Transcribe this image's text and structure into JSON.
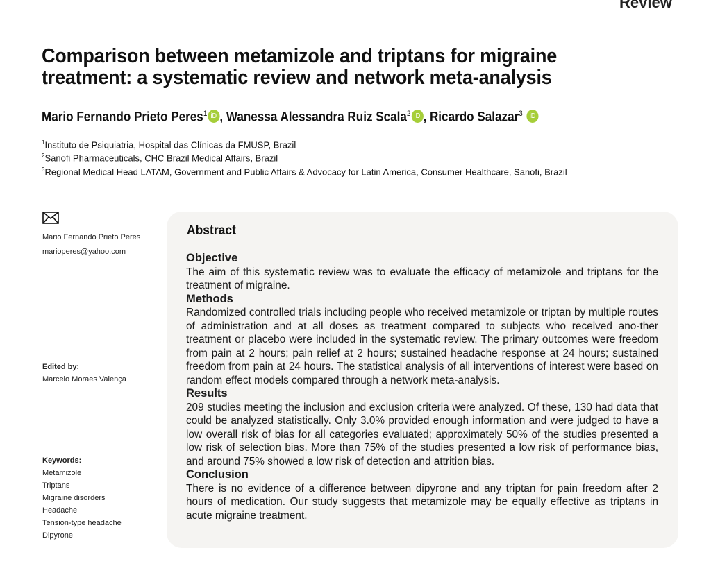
{
  "section_label": "Review",
  "title": "Comparison between metamizole and triptans for migraine treatment: a systematic review and network meta-analysis",
  "authors": [
    {
      "name": "Mario Fernando Prieto Peres",
      "sup": "1",
      "orcid": "iD"
    },
    {
      "name": "Wanessa Alessandra Ruiz Scala",
      "sup": "2",
      "orcid": "iD"
    },
    {
      "name": "Ricardo Salazar",
      "sup": "3",
      "orcid": "iD"
    }
  ],
  "affiliations": [
    {
      "sup": "1",
      "text": "Instituto de Psiquiatria, Hospital das Clínicas da FMUSP, Brazil"
    },
    {
      "sup": "2",
      "text": "Sanofi Pharmaceuticals, CHC Brazil Medical Affairs, Brazil"
    },
    {
      "sup": "3",
      "text": "Regional Medical Head LATAM, Government and Public Affairs & Advocacy for Latin America, Consumer Healthcare, Sanofi, Brazil"
    }
  ],
  "correspondence": {
    "icon": "envelope-icon",
    "name": "Mario Fernando Prieto Peres",
    "email": "marioperes@yahoo.com"
  },
  "edited_by": {
    "label": "Edited by",
    "name": "Marcelo Moraes Valença"
  },
  "keywords": {
    "label": "Keywords:",
    "items": [
      "Metamizole",
      "Triptans",
      "Migraine disorders",
      "Headache",
      "Tension-type headache",
      "Dipyrone"
    ]
  },
  "abstract": {
    "heading": "Abstract",
    "sections": [
      {
        "title": "Objective",
        "text": "The aim of this systematic review was to evaluate the efficacy of metamizole and triptans for the treatment of migraine."
      },
      {
        "title": "Methods",
        "text": "Randomized controlled trials including people who received metamizole or triptan by multiple routes of administration and at all doses as treatment compared to subjects who received ano-ther treatment or placebo were included in the systematic review. The primary outcomes were freedom from pain at 2 hours; pain relief at 2 hours; sustained headache response at 24 hours; sustained freedom from pain at 24 hours. The statistical analysis of all interventions of interest were based on random effect models compared through a network meta-analysis."
      },
      {
        "title": "Results",
        "text": "209 studies meeting the inclusion and exclusion criteria were analyzed. Of these, 130 had data that could be analyzed statistically. Only 3.0% provided enough information and were judged to have a low overall risk of bias for all categories evaluated; approximately 50% of the studies presented a low risk of selection bias. More than 75% of the studies presented a low risk of performance bias, and around 75% showed a low risk of detection and attrition bias."
      },
      {
        "title": "Conclusion",
        "text": "There is no evidence of a difference between dipyrone and any triptan for pain freedom after 2 hours of medication. Our study suggests that metamizole may be equally effective as triptans in acute migraine treatment."
      }
    ]
  }
}
